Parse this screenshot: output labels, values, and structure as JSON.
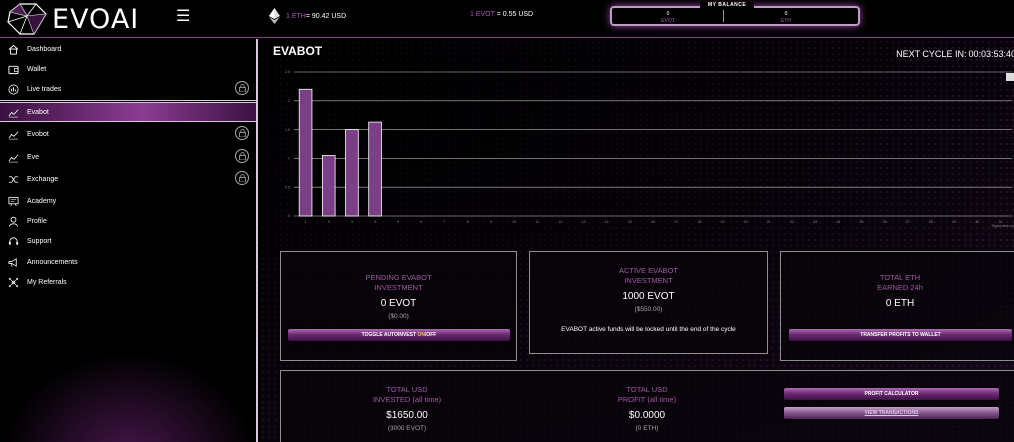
{
  "header": {
    "brand": "EVOAI",
    "eth_price_prefix": "1 ETH",
    "eth_price_value": " = 90.42 USD",
    "evot_price_prefix": "1 EVOT",
    "evot_price_value": " = 0.55 USD",
    "balance": {
      "title": "MY BALANCE",
      "evot_value": "0",
      "evot_label": "EVOT",
      "eth_value": "0",
      "eth_label": "ETH"
    }
  },
  "sidebar": {
    "items": [
      {
        "label": "Dashboard",
        "icon": "home-icon",
        "locked": false,
        "active": false
      },
      {
        "label": "Wallet",
        "icon": "wallet-icon",
        "locked": false,
        "active": false
      },
      {
        "label": "Live trades",
        "icon": "bars-icon",
        "locked": true,
        "active": false
      },
      {
        "label": "Evabot",
        "icon": "trend-icon",
        "locked": false,
        "active": true
      },
      {
        "label": "Evobot",
        "icon": "trend-icon",
        "locked": true,
        "active": false
      },
      {
        "label": "Eve",
        "icon": "trend-icon",
        "locked": true,
        "active": false
      },
      {
        "label": "Exchange",
        "icon": "shuffle-icon",
        "locked": true,
        "active": false
      },
      {
        "label": "Academy",
        "icon": "academy-icon",
        "locked": false,
        "active": false
      },
      {
        "label": "Profile",
        "icon": "user-icon",
        "locked": false,
        "active": false
      },
      {
        "label": "Support",
        "icon": "headset-icon",
        "locked": false,
        "active": false
      },
      {
        "label": "Announcements",
        "icon": "megaphone-icon",
        "locked": false,
        "active": false
      },
      {
        "label": "My Referrals",
        "icon": "network-icon",
        "locked": false,
        "active": false
      }
    ]
  },
  "main": {
    "title": "EVABOT",
    "next_cycle_label": "NEXT CYCLE IN:",
    "next_cycle_value": "00:03:53:40"
  },
  "chart_data": {
    "type": "bar",
    "categories": [
      "1",
      "2",
      "3",
      "4",
      "5",
      "6",
      "7",
      "8",
      "9",
      "10",
      "11",
      "12",
      "13",
      "14",
      "15",
      "16",
      "17",
      "18",
      "19",
      "20",
      "21",
      "22",
      "23",
      "24",
      "25",
      "26",
      "27",
      "28",
      "29",
      "30",
      "31"
    ],
    "values": [
      2.2,
      1.05,
      1.5,
      1.63,
      0,
      0,
      0,
      0,
      0,
      0,
      0,
      0,
      0,
      0,
      0,
      0,
      0,
      0,
      0,
      0,
      0,
      0,
      0,
      0,
      0,
      0,
      0,
      0,
      0,
      0,
      0
    ],
    "yticks": [
      "0",
      "0.5",
      "1",
      "1.5",
      "2",
      "2.5"
    ],
    "ylim": [
      0,
      2.5
    ],
    "credit": "Highcharts.com",
    "bar_color": "#7b3f86",
    "grid": true
  },
  "cards": {
    "pending": {
      "title_line1": "PENDING EVABOT",
      "title_line2": "INVESTMENT",
      "value": "0 EVOT",
      "sub": "($0.00)",
      "button_prefix": "TOGGLE AUTOINVEST ",
      "button_on": "ON",
      "button_suffix": "/OFF"
    },
    "active": {
      "title_line1": "ACTIVE EVABOT",
      "title_line2": "INVESTMENT",
      "value": "1000 EVOT",
      "sub": "($550.00)",
      "note": "EVABOT active funds will be locked until the end of the cycle"
    },
    "eth_earned": {
      "title_line1": "TOTAL ETH",
      "title_line2": "EARNED 24h",
      "value": "0 ETH",
      "button": "TRANSFER PROFITS TO WALLET"
    },
    "invested": {
      "title_line1": "TOTAL USD",
      "title_line2": "INVESTED (all time)",
      "value": "$1650.00",
      "sub": "(3000 EVOT)"
    },
    "profit": {
      "title_line1": "TOTAL USD",
      "title_line2": "PROFIT (all time)",
      "value": "$0.0000",
      "sub": "(0 ETH)"
    },
    "actions": {
      "profit_calculator": "PROFIT CALCULATOR",
      "view_transactions": "VIEW TRANSACTIONS"
    }
  },
  "colors": {
    "accent": "#9e5aa3",
    "active_nav": "#8b3c93",
    "button_on": "#f0c24a"
  }
}
